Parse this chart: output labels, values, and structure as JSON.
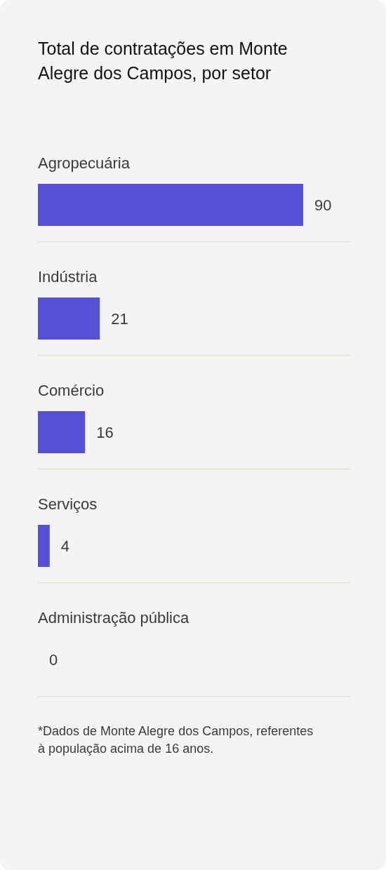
{
  "chart_data": {
    "type": "bar",
    "orientation": "horizontal",
    "title": "Total de contratações em Monte Alegre dos Campos, por setor",
    "categories": [
      "Agropecuária",
      "Indústria",
      "Comércio",
      "Serviços",
      "Administração pública"
    ],
    "values": [
      90,
      21,
      16,
      4,
      0
    ],
    "color": "#5550d4",
    "data_labels": true,
    "annotations": [
      "*Dados de Monte Alegre dos Campos, referentes à população acima de 16 anos."
    ]
  }
}
